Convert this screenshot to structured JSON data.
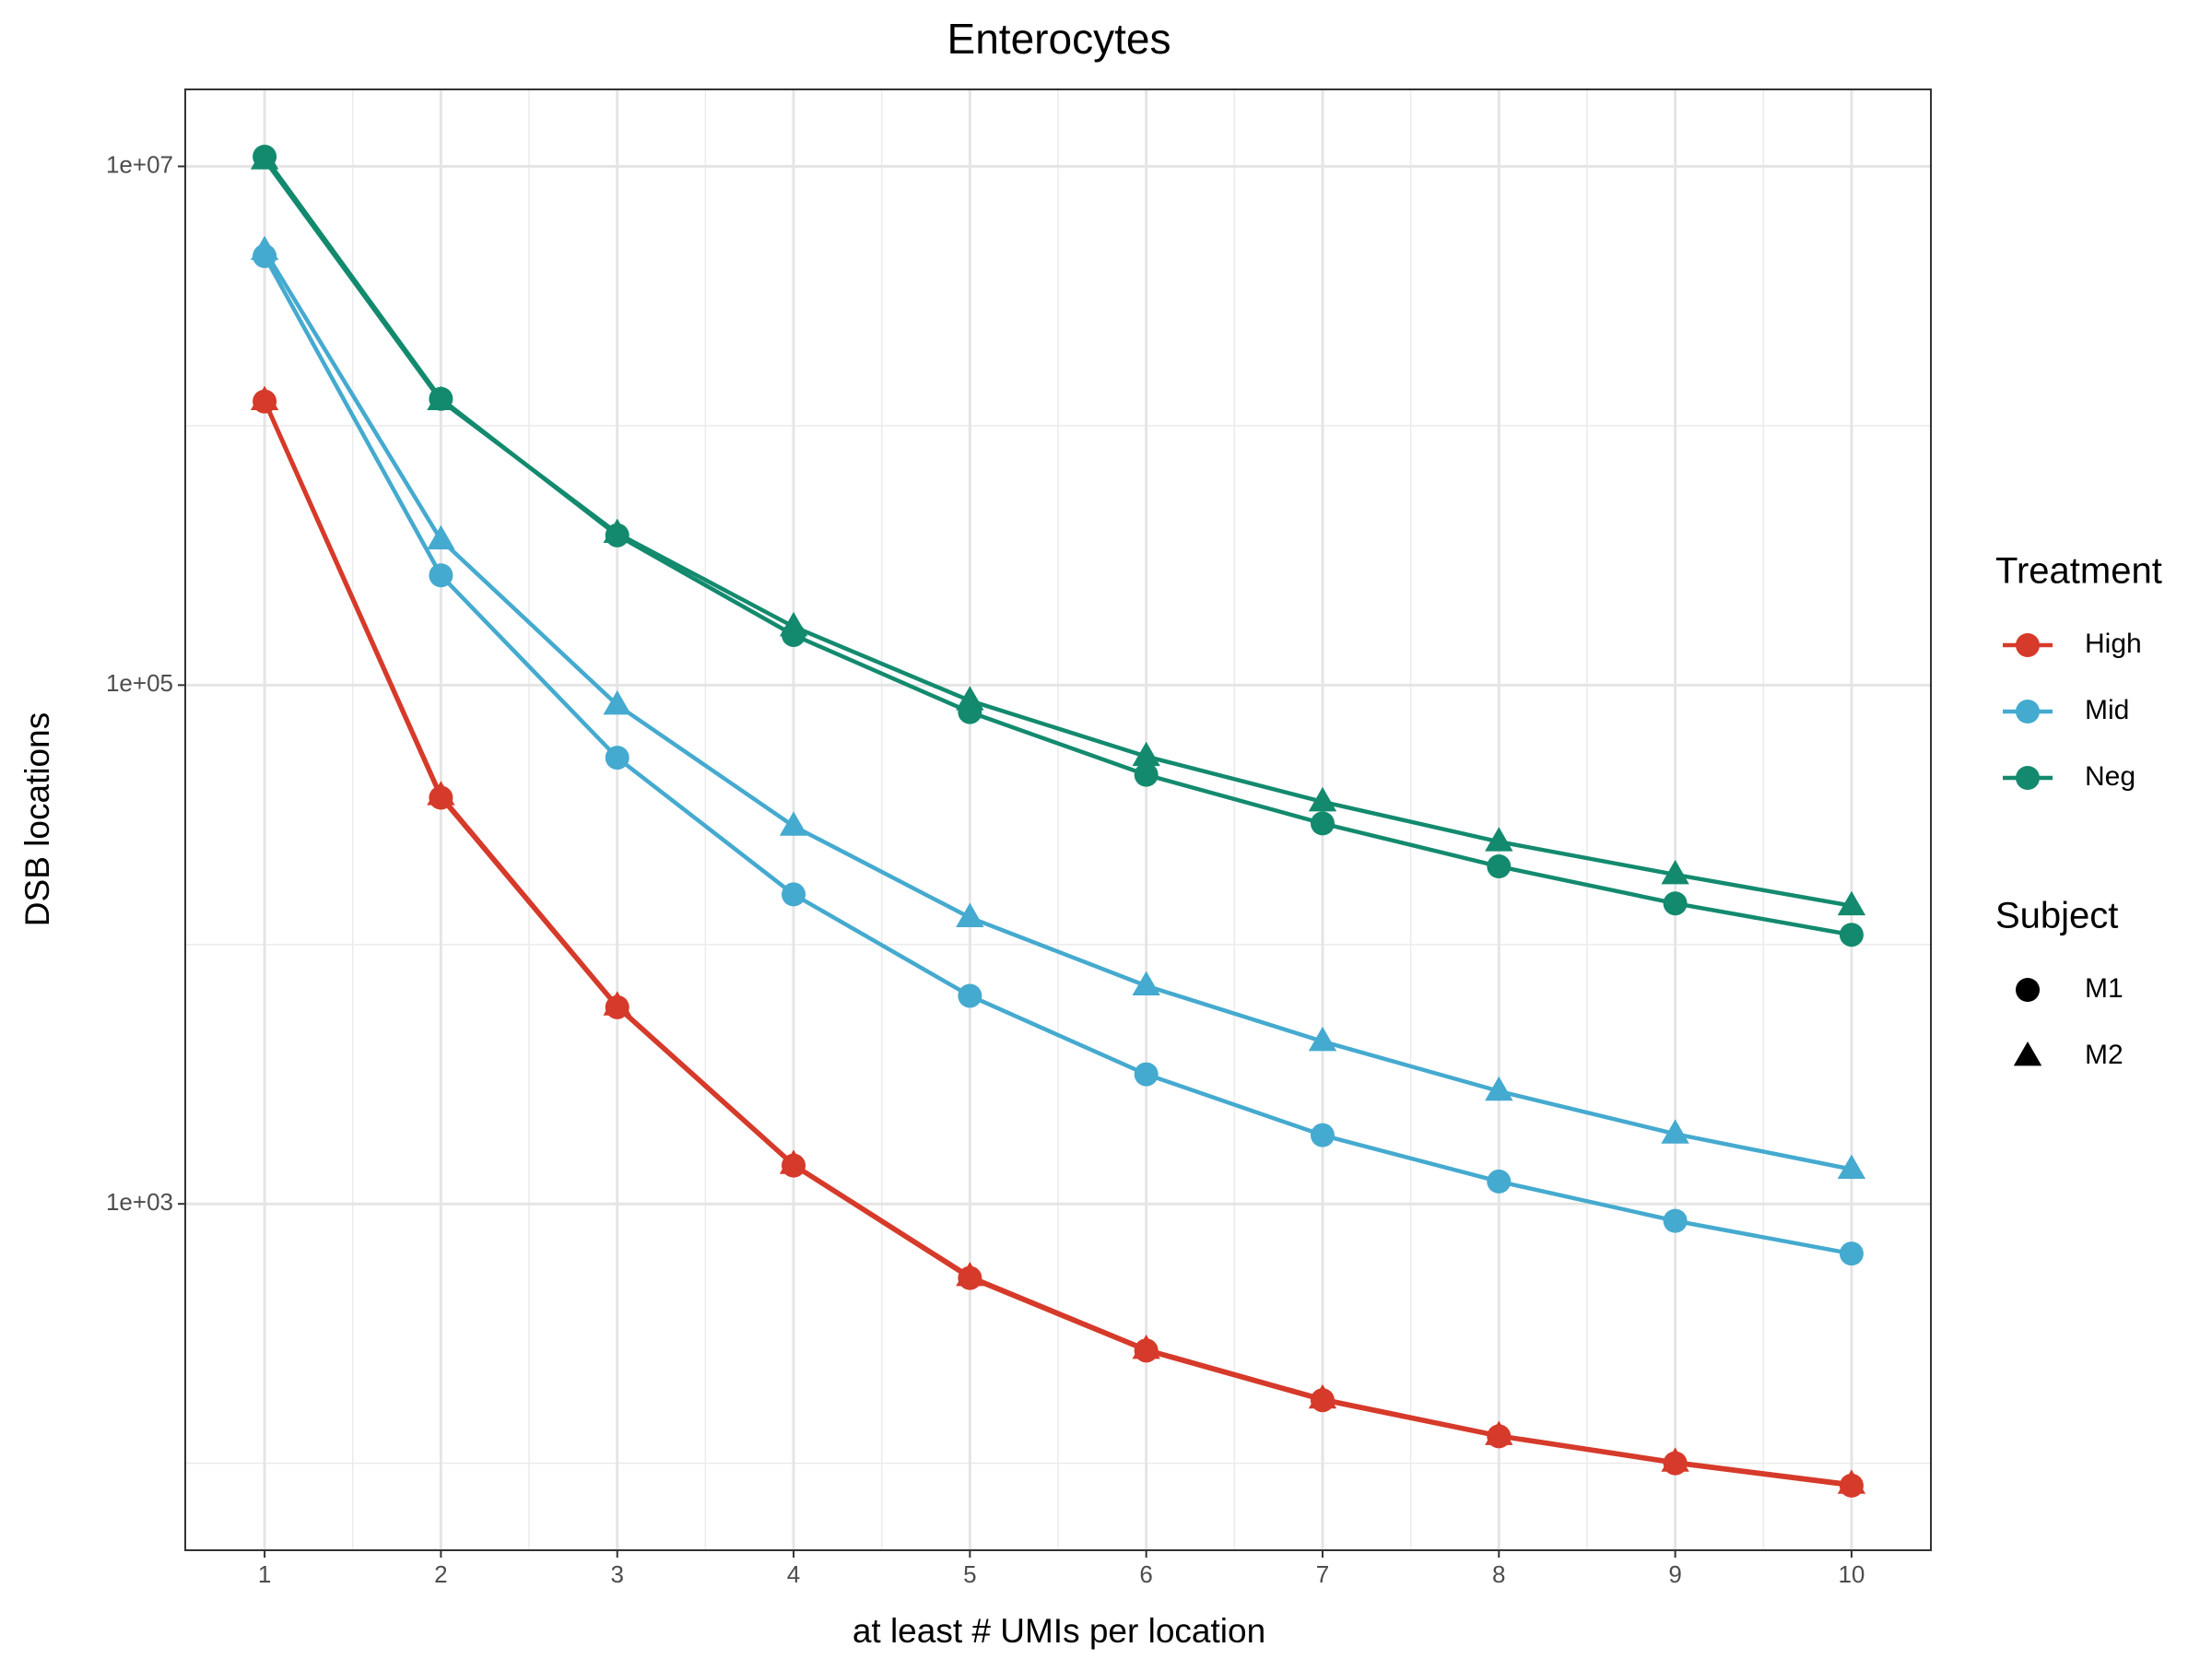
{
  "chart_data": {
    "type": "line",
    "title": "Enterocytes",
    "x_label": "at least # UMIs per location",
    "y_label": "DSB locations",
    "log_y": true,
    "grid": true,
    "x": [
      1,
      2,
      3,
      4,
      5,
      6,
      7,
      8,
      9,
      10
    ],
    "xlim": [
      0.55,
      10.45
    ],
    "xticks": [
      1,
      2,
      3,
      4,
      5,
      6,
      7,
      8,
      9,
      10
    ],
    "ylim": [
      46.2,
      19800000
    ],
    "yticks": [
      {
        "value": 10000000,
        "label": "1e+07"
      },
      {
        "value": 100000,
        "label": "1e+05"
      },
      {
        "value": 1000,
        "label": "1e+03"
      }
    ],
    "yminor": [
      1000000,
      10000,
      100
    ],
    "legend_position": "right",
    "legends": [
      {
        "title": "Treatment",
        "entries": [
          {
            "name": "High",
            "color": "#d63a2a"
          },
          {
            "name": "Mid",
            "color": "#45aacf"
          },
          {
            "name": "Neg",
            "color": "#138a6e"
          }
        ]
      },
      {
        "title": "Subject",
        "entries": [
          {
            "name": "M1",
            "marker": "circle"
          },
          {
            "name": "M2",
            "marker": "triangle"
          }
        ]
      }
    ],
    "series": [
      {
        "name": "High",
        "subject": "M1",
        "color": "#d63a2a",
        "marker": "circle",
        "values": [
          1240000,
          36800,
          5730,
          1405,
          518,
          272,
          175,
          127,
          100,
          82
        ]
      },
      {
        "name": "High",
        "subject": "M2",
        "color": "#d63a2a",
        "marker": "triangle",
        "values": [
          1250000,
          37500,
          5800,
          1420,
          525,
          275,
          177,
          128,
          101,
          83
        ]
      },
      {
        "name": "Mid",
        "subject": "M1",
        "color": "#45aacf",
        "marker": "circle",
        "values": [
          4510000,
          265000,
          52500,
          15600,
          6340,
          3160,
          1840,
          1220,
          860,
          643
        ]
      },
      {
        "name": "Mid",
        "subject": "M2",
        "color": "#45aacf",
        "marker": "triangle",
        "values": [
          4740000,
          363000,
          83800,
          28600,
          12700,
          6930,
          4230,
          2720,
          1860,
          1360
        ]
      },
      {
        "name": "Neg",
        "subject": "M1",
        "color": "#138a6e",
        "marker": "circle",
        "values": [
          10900000,
          1270000,
          378000,
          156000,
          78700,
          45100,
          29300,
          20000,
          14400,
          10900
        ]
      },
      {
        "name": "Neg",
        "subject": "M2",
        "color": "#138a6e",
        "marker": "triangle",
        "values": [
          10600000,
          1250000,
          385000,
          168000,
          87100,
          53100,
          35500,
          24900,
          18600,
          14100
        ]
      }
    ]
  }
}
